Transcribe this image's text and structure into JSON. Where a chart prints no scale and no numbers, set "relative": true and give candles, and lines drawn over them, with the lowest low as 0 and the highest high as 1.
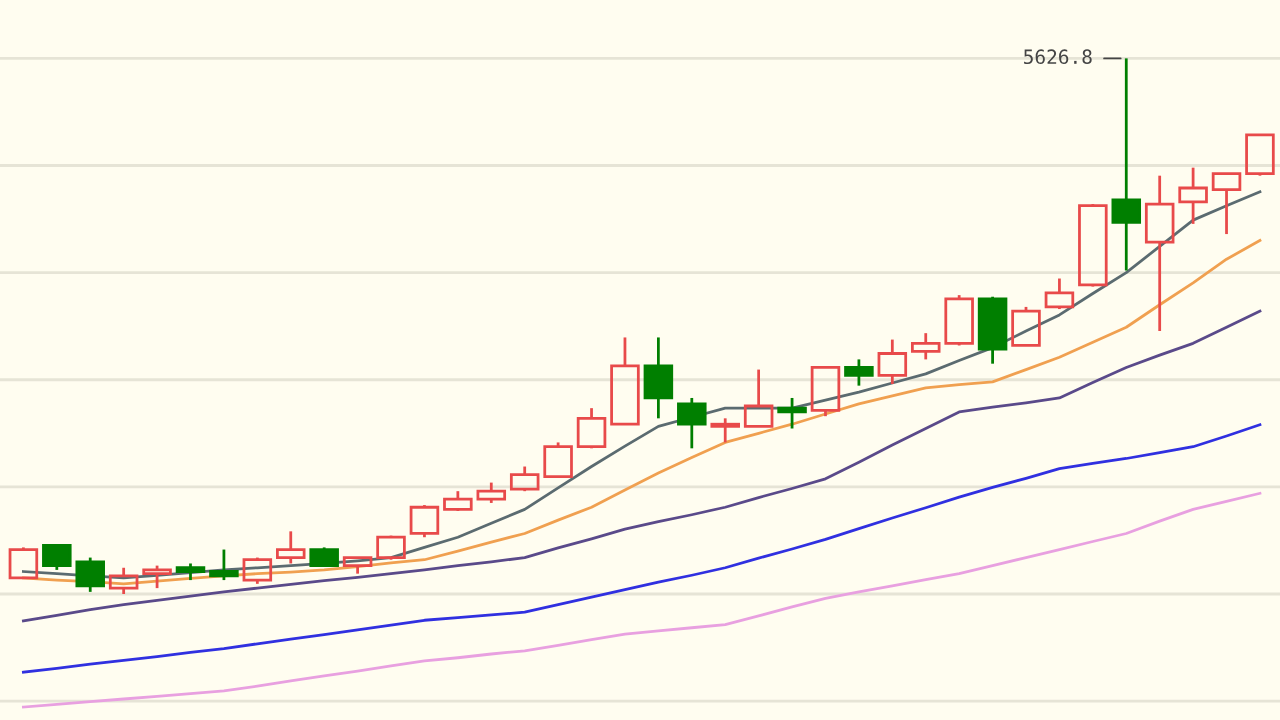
{
  "chart_data": {
    "type": "candlestick",
    "relative": true,
    "tick_labels": false,
    "grid": "y",
    "categories": [
      null,
      null,
      null,
      null,
      null,
      null,
      null,
      null,
      null,
      null,
      null,
      null,
      null,
      null,
      null,
      null,
      null,
      null,
      null,
      null,
      null,
      null,
      null,
      null,
      null,
      null,
      null,
      null,
      null,
      null,
      null,
      null,
      null,
      null,
      null,
      null,
      null,
      null
    ],
    "annotations": [
      "5626.8"
    ],
    "series": [
      {
        "type": "line",
        "color": "#5b6b70",
        "values": [
          0.042,
          0.038,
          0.034,
          0.03,
          0.035,
          0.04,
          0.045,
          0.049,
          0.053,
          0.057,
          0.062,
          0.068,
          0.087,
          0.106,
          0.132,
          0.158,
          0.198,
          0.238,
          0.276,
          0.313,
          0.33,
          0.347,
          0.347,
          0.347,
          0.362,
          0.377,
          0.394,
          0.411,
          0.436,
          0.46,
          0.491,
          0.521,
          0.561,
          0.6,
          0.649,
          0.698,
          0.725,
          0.751
        ]
      },
      {
        "type": "line",
        "color": "#f0a050",
        "values": [
          0.03,
          0.026,
          0.023,
          0.019,
          0.024,
          0.029,
          0.034,
          0.038,
          0.041,
          0.045,
          0.051,
          0.058,
          0.064,
          0.08,
          0.097,
          0.113,
          0.138,
          0.162,
          0.194,
          0.226,
          0.255,
          0.283,
          0.3,
          0.317,
          0.336,
          0.355,
          0.37,
          0.385,
          0.391,
          0.396,
          0.419,
          0.442,
          0.47,
          0.498,
          0.54,
          0.581,
          0.625,
          0.66
        ]
      },
      {
        "type": "line",
        "color": "#5a4a8a",
        "values": [
          -0.05,
          -0.04,
          -0.029,
          -0.02,
          -0.012,
          -0.004,
          0.004,
          0.011,
          0.018,
          0.025,
          0.031,
          0.038,
          0.045,
          0.053,
          0.06,
          0.068,
          0.086,
          0.103,
          0.121,
          0.135,
          0.148,
          0.162,
          0.18,
          0.197,
          0.215,
          0.246,
          0.278,
          0.309,
          0.34,
          0.349,
          0.357,
          0.366,
          0.395,
          0.423,
          0.446,
          0.468,
          0.498,
          0.528
        ]
      },
      {
        "type": "line",
        "color": "#3030e0",
        "values": [
          -0.146,
          -0.139,
          -0.131,
          -0.124,
          -0.117,
          -0.109,
          -0.102,
          -0.093,
          -0.084,
          -0.076,
          -0.067,
          -0.058,
          -0.049,
          -0.044,
          -0.039,
          -0.034,
          -0.02,
          -0.006,
          0.008,
          0.022,
          0.035,
          0.049,
          0.067,
          0.084,
          0.102,
          0.122,
          0.142,
          0.161,
          0.181,
          0.199,
          0.216,
          0.234,
          0.244,
          0.253,
          0.264,
          0.275,
          0.295,
          0.316
        ]
      },
      {
        "type": "line",
        "color": "#e8a0e0",
        "values": [
          -0.211,
          -0.206,
          -0.201,
          -0.196,
          -0.191,
          -0.186,
          -0.181,
          -0.172,
          -0.162,
          -0.153,
          -0.144,
          -0.134,
          -0.125,
          -0.119,
          -0.112,
          -0.106,
          -0.096,
          -0.085,
          -0.075,
          -0.069,
          -0.063,
          -0.057,
          -0.041,
          -0.024,
          -0.008,
          0.004,
          0.015,
          0.027,
          0.038,
          0.053,
          0.068,
          0.083,
          0.098,
          0.113,
          0.136,
          0.158,
          0.173,
          0.188
        ]
      },
      {
        "type": "candlestick",
        "colors": [
          "#e84a4a",
          "#007f00",
          "#007f00",
          "#e84a4a",
          "#e84a4a",
          "#007f00",
          "#007f00",
          "#e84a4a",
          "#e84a4a",
          "#007f00",
          "#e84a4a",
          "#e84a4a",
          "#e84a4a",
          "#e84a4a",
          "#e84a4a",
          "#e84a4a",
          "#e84a4a",
          "#e84a4a",
          "#e84a4a",
          "#007f00",
          "#007f00",
          "#e84a4a",
          "#e84a4a",
          "#007f00",
          "#e84a4a",
          "#007f00",
          "#e84a4a",
          "#e84a4a",
          "#e84a4a",
          "#007f00",
          "#e84a4a",
          "#e84a4a",
          "#e84a4a",
          "#007f00",
          "#e84a4a",
          "#e84a4a",
          "#e84a4a",
          "#e84a4a"
        ],
        "ohlc": [
          [
            0.03,
            0.087,
            0.03,
            0.083
          ],
          [
            0.091,
            0.091,
            0.045,
            0.053
          ],
          [
            0.06,
            0.068,
            0.004,
            0.015
          ],
          [
            0.011,
            0.049,
            0,
            0.034
          ],
          [
            0.038,
            0.053,
            0.011,
            0.045
          ],
          [
            0.049,
            0.057,
            0.026,
            0.042
          ],
          [
            0.042,
            0.083,
            0.026,
            0.034
          ],
          [
            0.026,
            0.068,
            0.019,
            0.064
          ],
          [
            0.068,
            0.117,
            0.057,
            0.083
          ],
          [
            0.083,
            0.087,
            0.053,
            0.053
          ],
          [
            0.053,
            0.068,
            0.038,
            0.068
          ],
          [
            0.068,
            0.109,
            0.064,
            0.106
          ],
          [
            0.113,
            0.166,
            0.106,
            0.162
          ],
          [
            0.158,
            0.192,
            0.155,
            0.177
          ],
          [
            0.177,
            0.208,
            0.17,
            0.192
          ],
          [
            0.196,
            0.238,
            0.192,
            0.223
          ],
          [
            0.219,
            0.283,
            0.219,
            0.275
          ],
          [
            0.275,
            0.347,
            0.272,
            0.328
          ],
          [
            0.317,
            0.479,
            0.317,
            0.426
          ],
          [
            0.426,
            0.479,
            0.328,
            0.366
          ],
          [
            0.355,
            0.366,
            0.272,
            0.317
          ],
          [
            0.313,
            0.328,
            0.283,
            0.317
          ],
          [
            0.313,
            0.419,
            0.313,
            0.351
          ],
          [
            0.347,
            0.366,
            0.309,
            0.34
          ],
          [
            0.343,
            0.423,
            0.332,
            0.423
          ],
          [
            0.423,
            0.438,
            0.389,
            0.408
          ],
          [
            0.408,
            0.475,
            0.392,
            0.449
          ],
          [
            0.453,
            0.487,
            0.438,
            0.468
          ],
          [
            0.468,
            0.558,
            0.464,
            0.551
          ],
          [
            0.551,
            0.555,
            0.43,
            0.457
          ],
          [
            0.464,
            0.536,
            0.464,
            0.528
          ],
          [
            0.536,
            0.589,
            0.532,
            0.562
          ],
          [
            0.577,
            0.728,
            0.574,
            0.725
          ],
          [
            0.736,
            1,
            0.604,
            0.694
          ],
          [
            0.657,
            0.781,
            0.491,
            0.728
          ],
          [
            0.732,
            0.796,
            0.691,
            0.758
          ],
          [
            0.755,
            0.785,
            0.672,
            0.785
          ],
          [
            0.785,
            0.857,
            0.781,
            0.857
          ]
        ]
      }
    ]
  }
}
